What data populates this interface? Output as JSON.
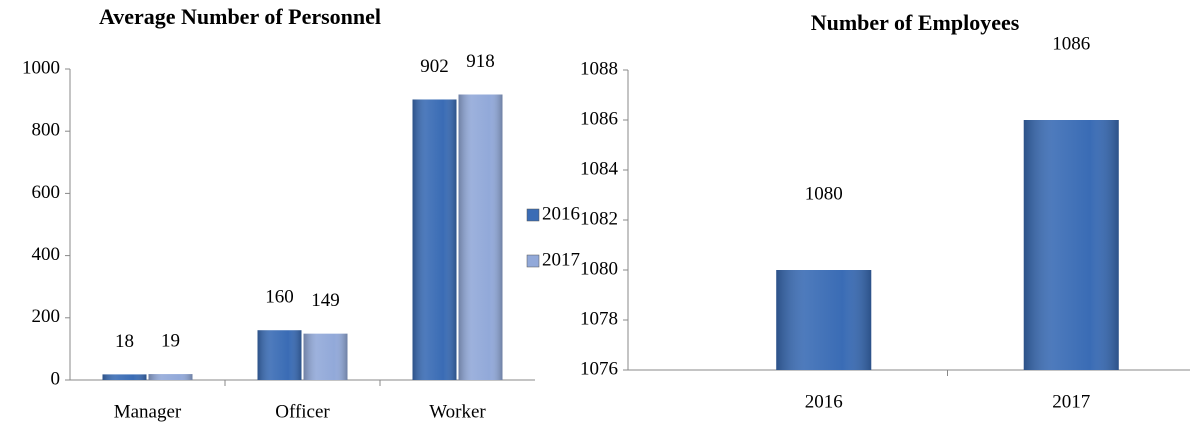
{
  "chart_data": [
    {
      "type": "bar",
      "title": "Average Number of Personnel",
      "categories": [
        "Manager",
        "Officer",
        "Worker"
      ],
      "series": [
        {
          "name": "2016",
          "color": "#3a6cb5",
          "values": [
            18,
            160,
            902
          ]
        },
        {
          "name": "2017",
          "color": "#92a9d9",
          "values": [
            19,
            149,
            918
          ]
        }
      ],
      "ylim": [
        0,
        1000
      ],
      "yticks": [
        0,
        200,
        400,
        600,
        800,
        1000
      ],
      "legend": "right",
      "grid": false
    },
    {
      "type": "bar",
      "title": "Number of Employees",
      "categories": [
        "2016",
        "2017"
      ],
      "values": [
        1080,
        1086
      ],
      "color": "#3a6cb5",
      "ylim": [
        1076,
        1088
      ],
      "yticks": [
        1076,
        1078,
        1080,
        1082,
        1084,
        1086,
        1088
      ],
      "grid": false
    }
  ]
}
